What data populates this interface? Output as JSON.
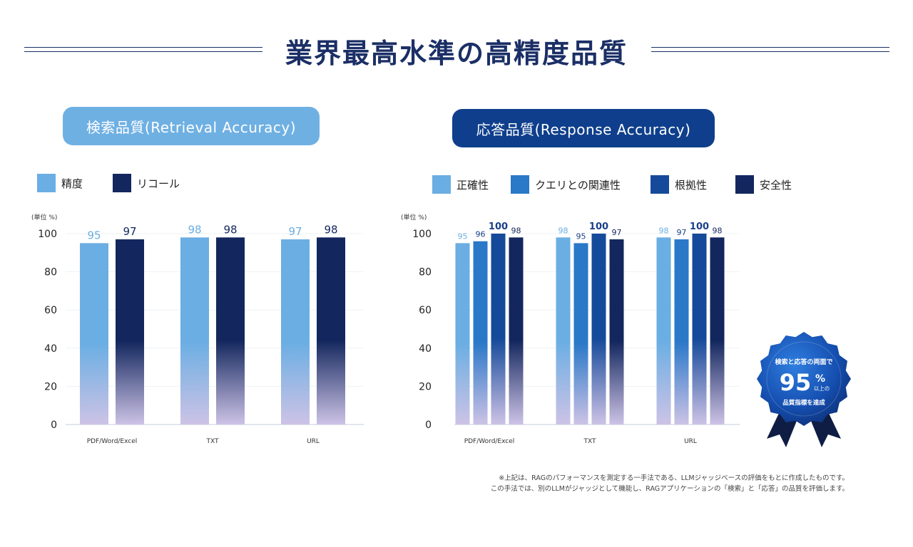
{
  "title": "業界最高水準の高精度品質",
  "retrieval": {
    "heading": "検索品質(Retrieval Accuracy)",
    "unit_label": "(単位 %)",
    "legend": [
      {
        "label": "精度",
        "color": "#6aaee3"
      },
      {
        "label": "リコール",
        "color": "#13275e"
      }
    ]
  },
  "response": {
    "heading": "応答品質(Response Accuracy)",
    "unit_label": "(単位 %)",
    "legend": [
      {
        "label": "正確性",
        "color": "#6aaee3"
      },
      {
        "label": "クエリとの関連性",
        "color": "#2a78c8"
      },
      {
        "label": "根拠性",
        "color": "#154a9a"
      },
      {
        "label": "安全性",
        "color": "#13275e"
      }
    ]
  },
  "chart_data": [
    {
      "type": "bar",
      "title": "検索品質(Retrieval Accuracy)",
      "ylabel": "(単位 %)",
      "ylim": [
        0,
        100
      ],
      "yticks": [
        0,
        20,
        40,
        60,
        80,
        100
      ],
      "categories": [
        "PDF/Word/Excel",
        "TXT",
        "URL"
      ],
      "series": [
        {
          "name": "精度",
          "values": [
            95,
            98,
            97
          ],
          "color": "#6aaee3"
        },
        {
          "name": "リコール",
          "values": [
            97,
            98,
            98
          ],
          "color": "#13275e"
        }
      ]
    },
    {
      "type": "bar",
      "title": "応答品質(Response Accuracy)",
      "ylabel": "(単位 %)",
      "ylim": [
        0,
        100
      ],
      "yticks": [
        0,
        20,
        40,
        60,
        80,
        100
      ],
      "categories": [
        "PDF/Word/Excel",
        "TXT",
        "URL"
      ],
      "series": [
        {
          "name": "正確性",
          "values": [
            95,
            98,
            98
          ],
          "color": "#6aaee3"
        },
        {
          "name": "クエリとの関連性",
          "values": [
            96,
            95,
            97
          ],
          "color": "#2a78c8"
        },
        {
          "name": "根拠性",
          "values": [
            100,
            100,
            100
          ],
          "color": "#154a9a"
        },
        {
          "name": "安全性",
          "values": [
            98,
            97,
            98
          ],
          "color": "#13275e"
        }
      ]
    }
  ],
  "badge": {
    "line1": "検索と応答の両面で",
    "number": "95",
    "percent": "%",
    "suffix": "以上の",
    "line3": "品質指標を達成"
  },
  "footnote": {
    "line1": "※上記は、RAGのパフォーマンスを測定する一手法である、LLMジャッジベースの評価をもとに作成したものです。",
    "line2": "この手法では、別のLLMがジャッジとして機能し、RAGアプリケーションの「検索」と「応答」の品質を評価します。"
  }
}
